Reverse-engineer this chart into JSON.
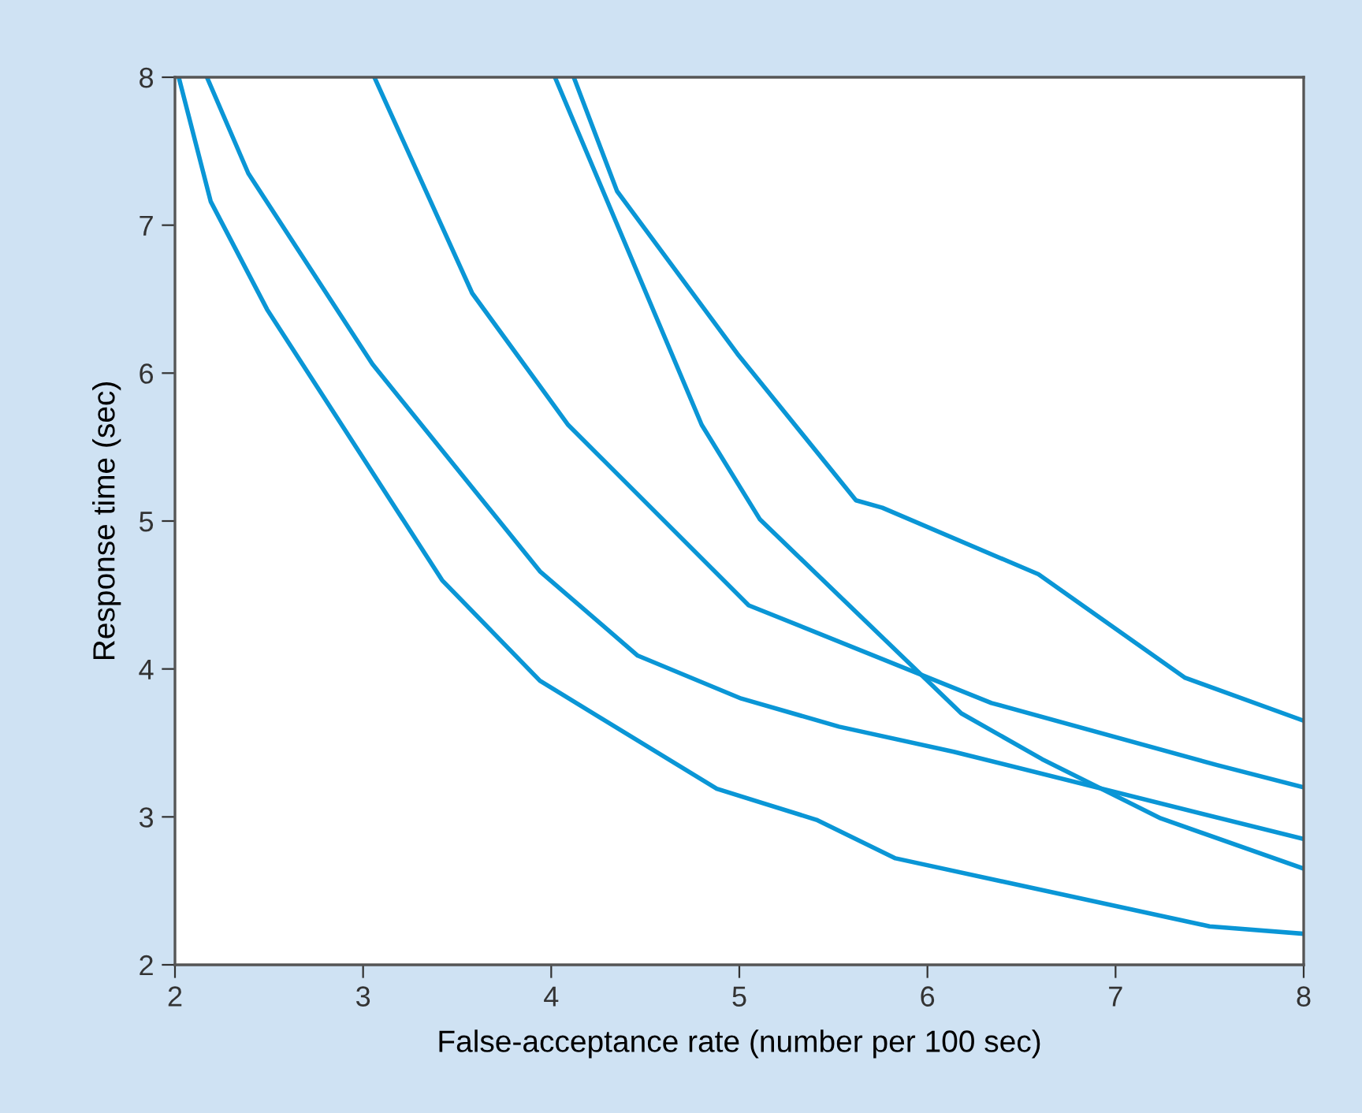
{
  "chart_data": {
    "type": "line",
    "xlabel": "False-acceptance rate (number per 100 sec)",
    "ylabel": "Response time (sec)",
    "xlim": [
      2,
      8
    ],
    "ylim": [
      2,
      8
    ],
    "xticks": [
      2,
      3,
      4,
      5,
      6,
      7,
      8
    ],
    "yticks": [
      2,
      3,
      4,
      5,
      6,
      7,
      8
    ],
    "grid": false,
    "legend": false,
    "marker": "none",
    "line_style": "solid",
    "series": [
      {
        "color": "#0a96d6",
        "x": [
          2.02,
          2.19,
          2.49,
          3.42,
          3.94,
          4.88,
          5.41,
          5.83,
          7.5,
          8
        ],
        "values": [
          8,
          7.16,
          6.43,
          4.6,
          3.92,
          3.19,
          2.98,
          2.72,
          2.26,
          2.21
        ]
      },
      {
        "color": "#0a96d6",
        "x": [
          2.17,
          2.39,
          3.05,
          3.94,
          4.46,
          5.01,
          5.53,
          6.14,
          8
        ],
        "values": [
          8,
          7.35,
          6.06,
          4.66,
          4.09,
          3.8,
          3.61,
          3.44,
          2.85
        ]
      },
      {
        "color": "#0a96d6",
        "x": [
          3.06,
          3.58,
          4.09,
          5.05,
          6.34,
          7.54,
          8
        ],
        "values": [
          8,
          6.54,
          5.65,
          4.43,
          3.77,
          3.35,
          3.2
        ]
      },
      {
        "color": "#0a96d6",
        "x": [
          4.02,
          4.8,
          5.11,
          6.18,
          6.61,
          7.24,
          8
        ],
        "values": [
          8,
          5.65,
          5.01,
          3.7,
          3.39,
          2.99,
          2.65
        ]
      },
      {
        "color": "#0a96d6",
        "x": [
          4.12,
          4.35,
          4.99,
          5.62,
          5.76,
          6.59,
          7.37,
          8
        ],
        "values": [
          8,
          7.23,
          6.13,
          5.14,
          5.09,
          4.64,
          3.94,
          3.65
        ]
      }
    ]
  }
}
